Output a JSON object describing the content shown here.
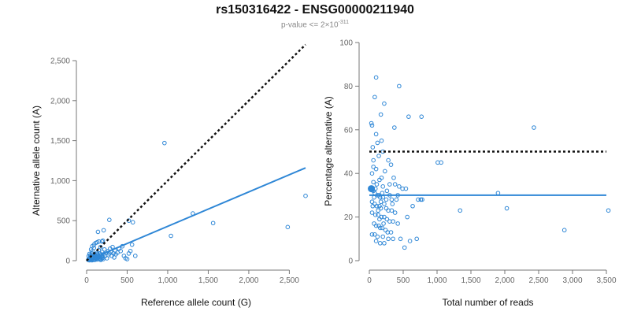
{
  "title": "rs150316422 - ENSG00000211940",
  "subtitle": {
    "prefix": "p-value <= 2×10",
    "exponent": "-311"
  },
  "colors": {
    "points": "#2f87d6",
    "fit": "#2f87d6",
    "reference": "#111111",
    "axis": "#777777"
  },
  "chart_data": [
    {
      "type": "scatter",
      "xlabel": "Reference allele count (G)",
      "ylabel": "Alternative allele count (A)",
      "xlim": [
        0,
        2700
      ],
      "ylim": [
        0,
        2500
      ],
      "xticks": [
        0,
        500,
        1000,
        1500,
        2000,
        2500
      ],
      "xtick_labels": [
        "0",
        "500",
        "1,000",
        "1,500",
        "2,000",
        "2,500"
      ],
      "yticks": [
        0,
        500,
        1000,
        1500,
        2000,
        2500
      ],
      "ytick_labels": [
        "0",
        "500",
        "1,000",
        "1,500",
        "2,000",
        "2,500"
      ],
      "fit_line": {
        "x": [
          0,
          2700
        ],
        "y": [
          0,
          1160
        ]
      },
      "reference_line": {
        "x": [
          0,
          2700
        ],
        "y": [
          0,
          2700
        ]
      },
      "points": [
        [
          20,
          10
        ],
        [
          30,
          20
        ],
        [
          35,
          5
        ],
        [
          40,
          40
        ],
        [
          45,
          70
        ],
        [
          50,
          25
        ],
        [
          55,
          15
        ],
        [
          60,
          45
        ],
        [
          65,
          90
        ],
        [
          70,
          120
        ],
        [
          75,
          30
        ],
        [
          80,
          10
        ],
        [
          85,
          55
        ],
        [
          90,
          160
        ],
        [
          95,
          20
        ],
        [
          100,
          80
        ],
        [
          105,
          35
        ],
        [
          110,
          50
        ],
        [
          115,
          25
        ],
        [
          120,
          65
        ],
        [
          125,
          15
        ],
        [
          130,
          100
        ],
        [
          135,
          40
        ],
        [
          140,
          70
        ],
        [
          145,
          20
        ],
        [
          150,
          130
        ],
        [
          155,
          55
        ],
        [
          160,
          30
        ],
        [
          165,
          90
        ],
        [
          170,
          45
        ],
        [
          175,
          10
        ],
        [
          180,
          75
        ],
        [
          185,
          25
        ],
        [
          190,
          110
        ],
        [
          195,
          50
        ],
        [
          200,
          35
        ],
        [
          210,
          80
        ],
        [
          220,
          140
        ],
        [
          230,
          60
        ],
        [
          240,
          100
        ],
        [
          250,
          30
        ],
        [
          260,
          120
        ],
        [
          270,
          70
        ],
        [
          280,
          90
        ],
        [
          290,
          150
        ],
        [
          300,
          110
        ],
        [
          310,
          60
        ],
        [
          320,
          170
        ],
        [
          330,
          90
        ],
        [
          340,
          40
        ],
        [
          350,
          130
        ],
        [
          360,
          80
        ],
        [
          380,
          100
        ],
        [
          400,
          150
        ],
        [
          420,
          120
        ],
        [
          440,
          180
        ],
        [
          460,
          60
        ],
        [
          480,
          30
        ],
        [
          500,
          20
        ],
        [
          520,
          90
        ],
        [
          540,
          120
        ],
        [
          560,
          200
        ],
        [
          600,
          60
        ],
        [
          55,
          140
        ],
        [
          70,
          180
        ],
        [
          90,
          200
        ],
        [
          110,
          220
        ],
        [
          130,
          230
        ],
        [
          150,
          240
        ],
        [
          170,
          170
        ],
        [
          190,
          240
        ],
        [
          200,
          250
        ],
        [
          210,
          380
        ],
        [
          280,
          510
        ],
        [
          140,
          360
        ],
        [
          60,
          60
        ],
        [
          80,
          40
        ],
        [
          100,
          10
        ],
        [
          120,
          30
        ],
        [
          25,
          55
        ],
        [
          35,
          85
        ],
        [
          45,
          30
        ],
        [
          65,
          5
        ],
        [
          85,
          15
        ],
        [
          105,
          60
        ],
        [
          125,
          85
        ],
        [
          145,
          45
        ],
        [
          165,
          15
        ],
        [
          185,
          55
        ],
        [
          205,
          20
        ],
        [
          960,
          1470
        ],
        [
          1310,
          590
        ],
        [
          1560,
          470
        ],
        [
          2480,
          420
        ],
        [
          2700,
          810
        ],
        [
          1040,
          310
        ],
        [
          570,
          480
        ],
        [
          520,
          500
        ]
      ]
    },
    {
      "type": "scatter",
      "xlabel": "Total number of reads",
      "ylabel": "Percentage alternative (A)",
      "xlim": [
        0,
        3500
      ],
      "ylim": [
        0,
        100
      ],
      "xticks": [
        0,
        500,
        1000,
        1500,
        2000,
        2500,
        3000,
        3500
      ],
      "xtick_labels": [
        "0",
        "500",
        "1,000",
        "1,500",
        "2,000",
        "2,500",
        "3,000",
        "3,500"
      ],
      "yticks": [
        0,
        20,
        40,
        60,
        80,
        100
      ],
      "ytick_labels": [
        "0",
        "20",
        "40",
        "60",
        "80",
        "100"
      ],
      "fit_line": {
        "x": [
          0,
          3500
        ],
        "y": [
          30,
          30
        ]
      },
      "reference_line": {
        "x": [
          0,
          3500
        ],
        "y": [
          50,
          50
        ]
      },
      "points": [
        [
          100,
          84
        ],
        [
          440,
          80
        ],
        [
          80,
          75
        ],
        [
          220,
          72
        ],
        [
          580,
          66
        ],
        [
          770,
          66
        ],
        [
          170,
          67
        ],
        [
          30,
          63
        ],
        [
          40,
          62
        ],
        [
          370,
          61
        ],
        [
          100,
          58
        ],
        [
          180,
          55
        ],
        [
          50,
          52
        ],
        [
          200,
          50
        ],
        [
          140,
          48
        ],
        [
          280,
          46
        ],
        [
          320,
          44
        ],
        [
          60,
          43
        ],
        [
          100,
          42
        ],
        [
          230,
          41
        ],
        [
          40,
          40
        ],
        [
          360,
          38
        ],
        [
          150,
          37
        ],
        [
          60,
          36
        ],
        [
          300,
          35
        ],
        [
          380,
          35
        ],
        [
          440,
          34
        ],
        [
          200,
          34
        ],
        [
          490,
          33
        ],
        [
          540,
          33
        ],
        [
          40,
          33
        ],
        [
          60,
          32
        ],
        [
          80,
          31
        ],
        [
          120,
          30
        ],
        [
          140,
          30
        ],
        [
          160,
          29
        ],
        [
          200,
          29
        ],
        [
          250,
          28
        ],
        [
          330,
          28
        ],
        [
          400,
          28
        ],
        [
          720,
          28
        ],
        [
          780,
          28
        ],
        [
          40,
          27
        ],
        [
          80,
          26
        ],
        [
          110,
          25
        ],
        [
          150,
          25
        ],
        [
          170,
          24
        ],
        [
          250,
          24
        ],
        [
          280,
          23
        ],
        [
          330,
          23
        ],
        [
          380,
          22
        ],
        [
          40,
          22
        ],
        [
          90,
          21
        ],
        [
          130,
          21
        ],
        [
          180,
          20
        ],
        [
          220,
          20
        ],
        [
          260,
          19
        ],
        [
          300,
          18
        ],
        [
          350,
          18
        ],
        [
          420,
          17
        ],
        [
          70,
          17
        ],
        [
          100,
          16
        ],
        [
          140,
          16
        ],
        [
          160,
          15
        ],
        [
          190,
          15
        ],
        [
          240,
          14
        ],
        [
          270,
          13
        ],
        [
          320,
          13
        ],
        [
          40,
          12
        ],
        [
          80,
          12
        ],
        [
          120,
          11
        ],
        [
          200,
          11
        ],
        [
          280,
          10
        ],
        [
          350,
          10
        ],
        [
          460,
          10
        ],
        [
          600,
          9
        ],
        [
          100,
          9
        ],
        [
          160,
          8
        ],
        [
          220,
          8
        ],
        [
          520,
          6
        ],
        [
          700,
          10
        ],
        [
          1010,
          45
        ],
        [
          1060,
          45
        ],
        [
          1340,
          23
        ],
        [
          1900,
          31
        ],
        [
          2030,
          24
        ],
        [
          2430,
          61
        ],
        [
          2880,
          14
        ],
        [
          3530,
          23
        ],
        [
          560,
          20
        ],
        [
          640,
          25
        ],
        [
          760,
          28
        ],
        [
          220,
          26
        ],
        [
          300,
          30
        ],
        [
          180,
          38
        ],
        [
          60,
          46
        ],
        [
          120,
          54
        ],
        [
          260,
          32
        ],
        [
          340,
          26
        ],
        [
          420,
          30
        ],
        [
          50,
          25
        ],
        [
          70,
          29
        ],
        [
          90,
          33
        ],
        [
          110,
          35
        ],
        [
          130,
          23
        ],
        [
          150,
          19
        ],
        [
          170,
          27
        ],
        [
          190,
          31
        ],
        [
          210,
          17
        ]
      ],
      "highlight_point": [
        30,
        33
      ]
    }
  ]
}
